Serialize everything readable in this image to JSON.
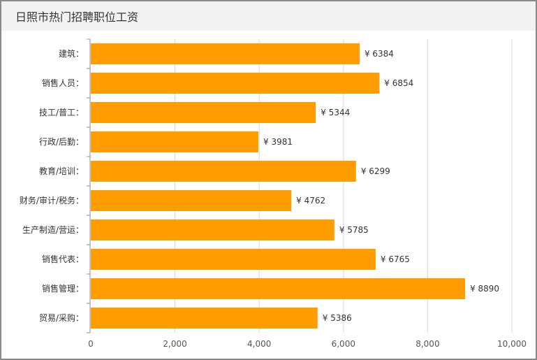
{
  "header": {
    "title": "日照市热门招聘职位工资"
  },
  "chart_data": {
    "type": "bar",
    "orientation": "horizontal",
    "title": "日照市热门招聘职位工资",
    "categories": [
      "建筑",
      "销售人员",
      "技工/普工",
      "行政/后勤",
      "教育/培训",
      "财务/审计/税务",
      "生产制造/营运",
      "销售代表",
      "销售管理",
      "贸易/采购"
    ],
    "category_suffix": "：",
    "values": [
      6384,
      6854,
      5344,
      3981,
      6299,
      4762,
      5785,
      6765,
      8890,
      5386
    ],
    "value_prefix": "¥",
    "xlim": [
      0,
      10000
    ],
    "xticks": [
      0,
      2000,
      4000,
      6000,
      8000,
      10000
    ],
    "xtick_labels": [
      "0",
      "2,000",
      "4,000",
      "6,000",
      "8,000",
      "10,000"
    ],
    "bar_color": "#ff9d00",
    "grid": true
  }
}
